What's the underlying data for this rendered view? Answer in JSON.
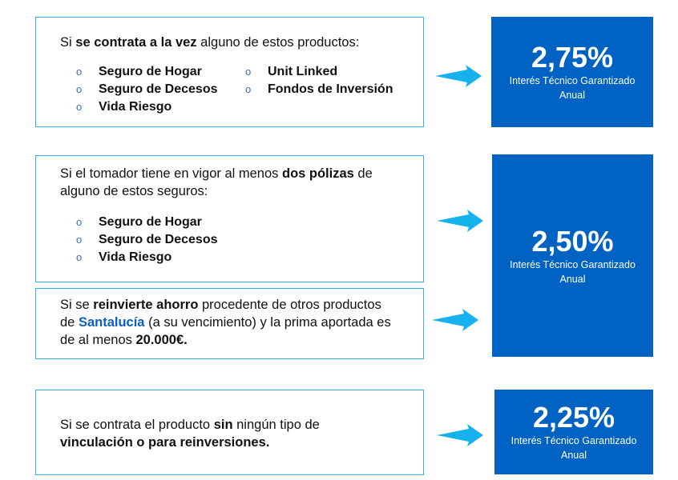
{
  "colors": {
    "rate_box": "#0062c2",
    "arrow": "#16b2ee",
    "card_border": "#3aaee0",
    "highlight": "#0a5fbf"
  },
  "bullet_glyph": "o",
  "blocks": [
    {
      "paragraph": [
        {
          "t": "Si "
        },
        {
          "t": "se contrata a la vez",
          "b": true
        },
        {
          "t": " alguno de estos productos:"
        }
      ],
      "list_left": [
        "Seguro de Hogar",
        "Seguro de Decesos",
        "Vida Riesgo"
      ],
      "list_right": [
        "Unit Linked",
        "Fondos de Inversión"
      ]
    },
    {
      "paragraph": [
        {
          "t": "Si el tomador tiene en vigor al menos "
        },
        {
          "t": "dos pólizas",
          "b": true
        },
        {
          "t": " de alguno de estos seguros:"
        }
      ],
      "list_left": [
        "Seguro de Hogar",
        "Seguro de Decesos",
        "Vida Riesgo"
      ]
    },
    {
      "paragraph": [
        {
          "t": "Si se "
        },
        {
          "t": "reinvierte ahorro",
          "b": true
        },
        {
          "t": " procedente de otros productos de "
        },
        {
          "t": "Santalucía",
          "h": true
        },
        {
          "t": " (a su vencimiento) y la prima aportada es de al menos "
        },
        {
          "t": "20.000€.",
          "b": true
        }
      ]
    },
    {
      "paragraph": [
        {
          "t": "Si se contrata el producto "
        },
        {
          "t": "sin",
          "b": true
        },
        {
          "t": " ningún tipo de "
        },
        {
          "t": "vinculación o para reinversiones.",
          "b": true
        }
      ]
    }
  ],
  "rates": [
    {
      "value": "2,75%",
      "label": "Interés Técnico Garantizado Anual"
    },
    {
      "value": "2,50%",
      "label": "Interés Técnico Garantizado Anual"
    },
    {
      "value": "2,25%",
      "label": "Interés Técnico Garantizado Anual"
    }
  ]
}
